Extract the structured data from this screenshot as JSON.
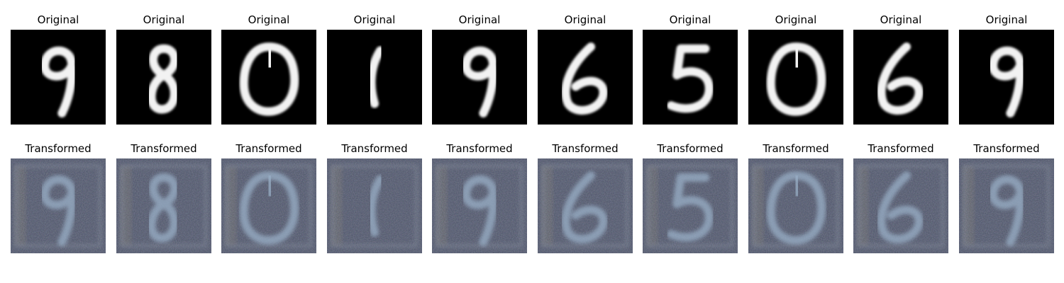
{
  "figure": {
    "rows": [
      {
        "row_name": "original",
        "titles": [
          "Original",
          "Original",
          "Original",
          "Original",
          "Original",
          "Original",
          "Original",
          "Original",
          "Original",
          "Original"
        ],
        "digits": [
          "9",
          "8",
          "0",
          "1",
          "9",
          "6",
          "5",
          "0",
          "6",
          "9"
        ],
        "style": {
          "background": "#000000",
          "stroke": "#f2f2f2",
          "blur": 1.1
        }
      },
      {
        "row_name": "transformed",
        "titles": [
          "Transformed",
          "Transformed",
          "Transformed",
          "Transformed",
          "Transformed",
          "Transformed",
          "Transformed",
          "Transformed",
          "Transformed",
          "Transformed"
        ],
        "digits": [
          "9",
          "8",
          "0",
          "1",
          "9",
          "6",
          "5",
          "0",
          "6",
          "9"
        ],
        "style": {
          "background": "#4d5468",
          "stroke": "#9ab0c8",
          "blur": 2.0
        }
      }
    ],
    "digit_icons": {
      "0": "digit-zero-icon",
      "1": "digit-one-icon",
      "5": "digit-five-icon",
      "6": "digit-six-icon",
      "8": "digit-eight-icon",
      "9": "digit-nine-icon"
    }
  }
}
